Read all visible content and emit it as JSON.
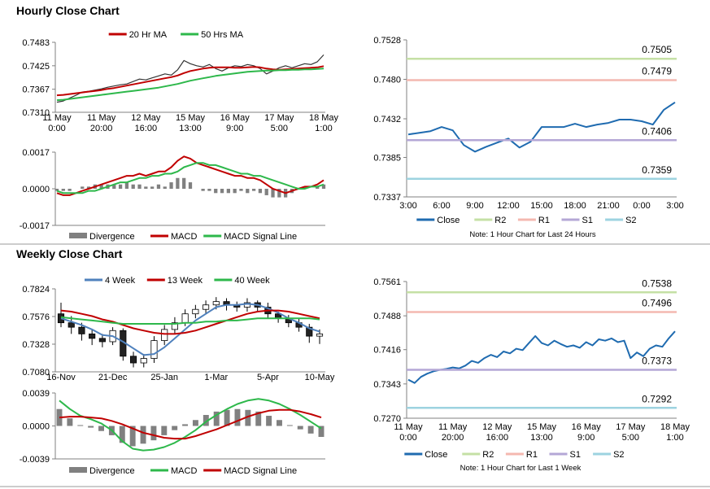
{
  "headings": [
    "Hourly Close Chart",
    "Weekly Close Chart"
  ],
  "chart_data": [
    {
      "type": "line",
      "categories": [
        "11 May\n0:00",
        null,
        null,
        null,
        null,
        null,
        null,
        "11 May\n20:00",
        null,
        null,
        null,
        null,
        null,
        null,
        "12 May\n16:00",
        null,
        null,
        null,
        null,
        null,
        null,
        "15 May\n13:00",
        null,
        null,
        null,
        null,
        null,
        null,
        "16 May\n9:00",
        null,
        null,
        null,
        null,
        null,
        null,
        "17 May\n5:00",
        null,
        null,
        null,
        null,
        null,
        null,
        "18 May\n1:00"
      ],
      "ylim": [
        0.731,
        0.7483
      ],
      "yticks": [
        {
          "value": 0.731,
          "label": "0.7310"
        },
        0.7367,
        0.7425,
        0.7483
      ],
      "legend": "top",
      "series": [
        {
          "color": "#333333",
          "values": [
            0.7335,
            0.7338,
            0.7345,
            0.7352,
            0.736,
            0.7362,
            0.7365,
            0.7368,
            0.7372,
            0.7375,
            0.7378,
            0.738,
            0.7386,
            0.7392,
            0.739,
            0.7395,
            0.74,
            0.7405,
            0.7402,
            0.7415,
            0.7438,
            0.743,
            0.7425,
            0.7422,
            0.7428,
            0.7418,
            0.7412,
            0.742,
            0.7425,
            0.7423,
            0.7428,
            0.7425,
            0.7418,
            0.7405,
            0.7412,
            0.742,
            0.7425,
            0.742,
            0.7425,
            0.743,
            0.7428,
            0.7435,
            0.7452
          ]
        },
        {
          "name": "20 Hr MA",
          "color": "#c00000",
          "values": [
            0.7352,
            0.7353,
            0.7355,
            0.7357,
            0.7359,
            0.7361,
            0.7363,
            0.7365,
            0.7368,
            0.737,
            0.7373,
            0.7376,
            0.7379,
            0.7382,
            0.7385,
            0.7388,
            0.7391,
            0.7394,
            0.7397,
            0.7401,
            0.7407,
            0.7412,
            0.7415,
            0.7418,
            0.742,
            0.7421,
            0.7421,
            0.7421,
            0.742,
            0.742,
            0.7421,
            0.7422,
            0.7421,
            0.7418,
            0.7416,
            0.7415,
            0.7416,
            0.7417,
            0.7418,
            0.7419,
            0.742,
            0.7421,
            0.7424
          ]
        },
        {
          "name": "50 Hrs MA",
          "color": "#2eb84b",
          "values": [
            0.734,
            0.7341,
            0.7343,
            0.7345,
            0.7347,
            0.7349,
            0.7351,
            0.7353,
            0.7355,
            0.7357,
            0.7359,
            0.7361,
            0.7363,
            0.7365,
            0.7367,
            0.7369,
            0.7371,
            0.7374,
            0.7377,
            0.738,
            0.7384,
            0.7388,
            0.7391,
            0.7394,
            0.7397,
            0.74,
            0.7402,
            0.7404,
            0.7406,
            0.7408,
            0.741,
            0.7411,
            0.7412,
            0.7413,
            0.7413,
            0.7414,
            0.7414,
            0.7415,
            0.7415,
            0.7416,
            0.7416,
            0.7417,
            0.7418
          ]
        }
      ]
    },
    {
      "type": "combo",
      "ylim": [
        -0.0017,
        0.0017
      ],
      "yticks": [
        -0.0017,
        {
          "value": 0,
          "label": "0.0000"
        },
        0.0017
      ],
      "legend": "bottom",
      "series": [
        {
          "name": "Divergence",
          "type": "bar",
          "color": "#808080",
          "values": [
            -0.0001,
            -0.0001,
            -0.0001,
            0,
            0.0001,
            0.0001,
            0.0002,
            0.0002,
            0.0002,
            0.0002,
            0.0002,
            0.0003,
            0.0002,
            0.0002,
            0.0001,
            0.0001,
            0.0002,
            0.0001,
            0.0003,
            0.0005,
            0.0005,
            0.0003,
            0,
            -0.0001,
            -0.0001,
            -0.0002,
            -0.0002,
            -0.0002,
            -0.0002,
            -0.0001,
            -0.0002,
            -0.0001,
            -0.0002,
            -0.0003,
            -0.0004,
            -0.0004,
            -0.0004,
            -0.0002,
            0,
            0.0001,
            0,
            0.0001,
            0.0002
          ]
        },
        {
          "name": "MACD",
          "color": "#c00000",
          "values": [
            -0.0002,
            -0.0003,
            -0.0003,
            -0.0002,
            -0.0001,
            0,
            0.0001,
            0.0002,
            0.0003,
            0.0004,
            0.0005,
            0.0006,
            0.0006,
            0.0007,
            0.0006,
            0.0007,
            0.0008,
            0.0008,
            0.001,
            0.0013,
            0.0015,
            0.0014,
            0.0012,
            0.0011,
            0.001,
            0.0009,
            0.0008,
            0.0007,
            0.0006,
            0.0006,
            0.0005,
            0.0005,
            0.0004,
            0.0002,
            0,
            -0.0001,
            -0.0002,
            -0.0001,
            0,
            0.0001,
            0.0001,
            0.0002,
            0.0004
          ]
        },
        {
          "name": "MACD Signal Line",
          "color": "#2eb84b",
          "values": [
            -0.0001,
            -0.0002,
            -0.0002,
            -0.0002,
            -0.0002,
            -0.0001,
            -0.0001,
            0,
            0.0001,
            0.0002,
            0.0003,
            0.0003,
            0.0004,
            0.0005,
            0.0005,
            0.0006,
            0.0006,
            0.0007,
            0.0007,
            0.0008,
            0.001,
            0.0011,
            0.0012,
            0.0012,
            0.0011,
            0.0011,
            0.001,
            0.0009,
            0.0008,
            0.0007,
            0.0007,
            0.0006,
            0.0006,
            0.0005,
            0.0004,
            0.0003,
            0.0002,
            0.0001,
            0,
            0,
            0.0001,
            0.0001,
            0.0002
          ]
        }
      ]
    },
    {
      "type": "line",
      "categories": [
        "3:00",
        null,
        null,
        "6:00",
        null,
        null,
        "9:00",
        null,
        null,
        "12:00",
        null,
        null,
        "15:00",
        null,
        null,
        "18:00",
        null,
        null,
        "21:00",
        null,
        null,
        "0:00",
        null,
        null,
        "3:00"
      ],
      "ylim": [
        0.7337,
        0.7528
      ],
      "yticks": [
        0.7337,
        0.7385,
        0.7432,
        {
          "value": 0.748,
          "label": "0.7480"
        },
        0.7528
      ],
      "legend": "bottom",
      "note": "Note: 1 Hour Chart for Last 24 Hours",
      "series": [
        {
          "name": "Close",
          "color": "#1f6bb0",
          "values": [
            0.7413,
            0.7415,
            0.7417,
            0.7422,
            0.7418,
            0.74,
            0.7392,
            0.7398,
            0.7403,
            0.7408,
            0.7397,
            0.7404,
            0.7422,
            0.7422,
            0.7422,
            0.7426,
            0.7422,
            0.7425,
            0.7427,
            0.7431,
            0.7431,
            0.7429,
            0.7425,
            0.7443,
            0.7452
          ]
        },
        {
          "name": "R2",
          "type": "level",
          "color": "#c5e0a5",
          "value": 0.7505
        },
        {
          "name": "R1",
          "type": "level",
          "color": "#f4b8b0",
          "value": 0.7479
        },
        {
          "name": "S1",
          "type": "level",
          "color": "#b4a7d6",
          "value": 0.7406
        },
        {
          "name": "S2",
          "type": "level",
          "color": "#9dd3e0",
          "value": 0.7359
        }
      ]
    },
    {
      "type": "candlestick",
      "categories": [
        "16-Nov",
        null,
        null,
        null,
        null,
        "21-Dec",
        null,
        null,
        null,
        null,
        "25-Jan",
        null,
        null,
        null,
        null,
        "1-Mar",
        null,
        null,
        null,
        null,
        "5-Apr",
        null,
        null,
        null,
        null,
        "10-May"
      ],
      "ylim": [
        0.708,
        0.7824
      ],
      "yticks": [
        {
          "value": 0.708,
          "label": "0.7080"
        },
        0.7328,
        0.7576,
        0.7824
      ],
      "legend": "top",
      "open": [
        0.76,
        0.752,
        0.748,
        0.742,
        0.738,
        0.735,
        0.745,
        0.722,
        0.716,
        0.72,
        0.736,
        0.746,
        0.752,
        0.76,
        0.764,
        0.768,
        0.771,
        0.768,
        0.766,
        0.77,
        0.766,
        0.76,
        0.756,
        0.752,
        0.748,
        0.74
      ],
      "high": [
        0.77,
        0.758,
        0.752,
        0.746,
        0.742,
        0.748,
        0.747,
        0.726,
        0.724,
        0.74,
        0.75,
        0.757,
        0.764,
        0.768,
        0.772,
        0.775,
        0.774,
        0.771,
        0.774,
        0.772,
        0.77,
        0.762,
        0.759,
        0.756,
        0.751,
        0.746
      ],
      "low": [
        0.748,
        0.742,
        0.736,
        0.732,
        0.73,
        0.732,
        0.718,
        0.712,
        0.712,
        0.716,
        0.732,
        0.742,
        0.749,
        0.756,
        0.76,
        0.764,
        0.763,
        0.762,
        0.762,
        0.762,
        0.756,
        0.752,
        0.748,
        0.744,
        0.734,
        0.733
      ],
      "close": [
        0.752,
        0.748,
        0.742,
        0.738,
        0.735,
        0.745,
        0.722,
        0.716,
        0.72,
        0.736,
        0.746,
        0.752,
        0.76,
        0.764,
        0.768,
        0.771,
        0.768,
        0.766,
        0.77,
        0.766,
        0.76,
        0.756,
        0.752,
        0.748,
        0.74,
        0.742
      ],
      "series": [
        {
          "name": "4 Week",
          "color": "#4f81bd",
          "values": [
            0.756,
            0.753,
            0.75,
            0.746,
            0.741,
            0.74,
            0.735,
            0.729,
            0.723,
            0.724,
            0.73,
            0.738,
            0.746,
            0.754,
            0.76,
            0.766,
            0.768,
            0.768,
            0.769,
            0.768,
            0.765,
            0.761,
            0.756,
            0.752,
            0.747,
            0.744
          ]
        },
        {
          "name": "13 Week",
          "color": "#c00000",
          "values": [
            0.763,
            0.762,
            0.76,
            0.758,
            0.755,
            0.753,
            0.75,
            0.747,
            0.745,
            0.743,
            0.742,
            0.742,
            0.743,
            0.745,
            0.748,
            0.751,
            0.754,
            0.757,
            0.76,
            0.762,
            0.763,
            0.763,
            0.762,
            0.76,
            0.758,
            0.756
          ]
        },
        {
          "name": "40 Week",
          "color": "#2eb84b",
          "values": [
            0.757,
            0.756,
            0.755,
            0.754,
            0.753,
            0.752,
            0.751,
            0.751,
            0.751,
            0.751,
            0.751,
            0.751,
            0.752,
            0.752,
            0.753,
            0.753,
            0.754,
            0.754,
            0.755,
            0.756,
            0.756,
            0.756,
            0.756,
            0.756,
            0.756,
            0.755
          ]
        }
      ]
    },
    {
      "type": "combo",
      "ylim": [
        -0.0039,
        0.0039
      ],
      "yticks": [
        -0.0039,
        {
          "value": 0,
          "label": "0.0000"
        },
        0.0039
      ],
      "legend": "bottom",
      "series": [
        {
          "name": "Divergence",
          "type": "bar",
          "color": "#808080",
          "values": [
            0.002,
            0.0009,
            0.0001,
            -0.0002,
            -0.0006,
            -0.0011,
            -0.002,
            -0.0024,
            -0.0021,
            -0.0017,
            -0.0011,
            -0.0005,
            0.0002,
            0.0007,
            0.0013,
            0.0017,
            0.0019,
            0.002,
            0.0019,
            0.0017,
            0.0012,
            0.0007,
            0.0001,
            -0.0004,
            -0.0009,
            -0.0013
          ]
        },
        {
          "name": "MACD",
          "color": "#2eb84b",
          "values": [
            0.003,
            0.002,
            0.0012,
            0.0008,
            0.0003,
            -0.0005,
            -0.0018,
            -0.0027,
            -0.0029,
            -0.0028,
            -0.0025,
            -0.002,
            -0.0013,
            -0.0005,
            0.0005,
            0.0013,
            0.002,
            0.0026,
            0.003,
            0.0032,
            0.003,
            0.0026,
            0.002,
            0.0013,
            0.0005,
            -0.0003
          ]
        },
        {
          "name": "MACD Signal Line",
          "color": "#c00000",
          "values": [
            0.001,
            0.0011,
            0.0011,
            0.001,
            0.0009,
            0.0006,
            0.0002,
            -0.0003,
            -0.0008,
            -0.0011,
            -0.0014,
            -0.0015,
            -0.0015,
            -0.0012,
            -0.0008,
            -0.0004,
            0.0001,
            0.0006,
            0.0011,
            0.0015,
            0.0018,
            0.0019,
            0.0019,
            0.0017,
            0.0014,
            0.001
          ]
        }
      ]
    },
    {
      "type": "line",
      "categories": [
        "11 May\n0:00",
        null,
        null,
        null,
        null,
        null,
        null,
        "11 May\n20:00",
        null,
        null,
        null,
        null,
        null,
        null,
        "12 May\n16:00",
        null,
        null,
        null,
        null,
        null,
        null,
        "15 May\n13:00",
        null,
        null,
        null,
        null,
        null,
        null,
        "16 May\n9:00",
        null,
        null,
        null,
        null,
        null,
        null,
        "17 May\n5:00",
        null,
        null,
        null,
        null,
        null,
        null,
        "18 May\n1:00"
      ],
      "ylim": [
        0.727,
        0.7561
      ],
      "yticks": [
        {
          "value": 0.727,
          "label": "0.7270"
        },
        0.7343,
        0.7416,
        0.7488,
        0.7561
      ],
      "legend": "bottom",
      "note": "Note: 1 Hour Chart for Last 1 Week",
      "series": [
        {
          "name": "Close",
          "color": "#1f6bb0",
          "values": [
            0.7352,
            0.7345,
            0.7358,
            0.7365,
            0.737,
            0.7373,
            0.7375,
            0.7378,
            0.7376,
            0.7382,
            0.7392,
            0.7388,
            0.7398,
            0.7405,
            0.74,
            0.7412,
            0.7408,
            0.7418,
            0.7415,
            0.743,
            0.7445,
            0.743,
            0.7425,
            0.7435,
            0.7428,
            0.7422,
            0.7425,
            0.742,
            0.7432,
            0.7425,
            0.7438,
            0.7435,
            0.744,
            0.7432,
            0.7435,
            0.7398,
            0.741,
            0.7402,
            0.7418,
            0.7425,
            0.7422,
            0.744,
            0.7455
          ]
        },
        {
          "name": "R2",
          "type": "level",
          "color": "#c5e0a5",
          "value": 0.7538
        },
        {
          "name": "R1",
          "type": "level",
          "color": "#f4b8b0",
          "value": 0.7496
        },
        {
          "name": "S1",
          "type": "level",
          "color": "#b4a7d6",
          "value": 0.7373
        },
        {
          "name": "S2",
          "type": "level",
          "color": "#9dd3e0",
          "value": 0.7292
        }
      ]
    }
  ]
}
